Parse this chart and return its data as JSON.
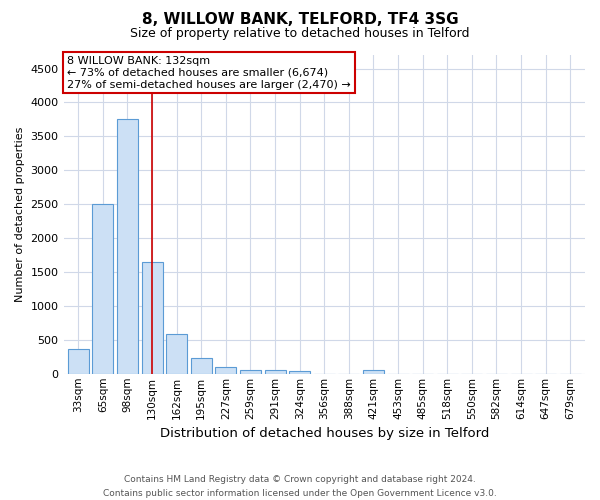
{
  "title_line1": "8, WILLOW BANK, TELFORD, TF4 3SG",
  "title_line2": "Size of property relative to detached houses in Telford",
  "xlabel": "Distribution of detached houses by size in Telford",
  "ylabel": "Number of detached properties",
  "categories": [
    "33sqm",
    "65sqm",
    "98sqm",
    "130sqm",
    "162sqm",
    "195sqm",
    "227sqm",
    "259sqm",
    "291sqm",
    "324sqm",
    "356sqm",
    "388sqm",
    "421sqm",
    "453sqm",
    "485sqm",
    "518sqm",
    "550sqm",
    "582sqm",
    "614sqm",
    "647sqm",
    "679sqm"
  ],
  "values": [
    370,
    2500,
    3750,
    1650,
    590,
    230,
    105,
    60,
    50,
    35,
    0,
    0,
    55,
    0,
    0,
    0,
    0,
    0,
    0,
    0,
    0
  ],
  "bar_color": "#cce0f5",
  "bar_edge_color": "#5b9bd5",
  "vline_x": 3,
  "vline_color": "#cc0000",
  "annotation_line1": "8 WILLOW BANK: 132sqm",
  "annotation_line2": "← 73% of detached houses are smaller (6,674)",
  "annotation_line3": "27% of semi-detached houses are larger (2,470) →",
  "annotation_box_color": "#ffffff",
  "annotation_box_edge_color": "#cc0000",
  "ylim": [
    0,
    4700
  ],
  "yticks": [
    0,
    500,
    1000,
    1500,
    2000,
    2500,
    3000,
    3500,
    4000,
    4500
  ],
  "footer_line1": "Contains HM Land Registry data © Crown copyright and database right 2024.",
  "footer_line2": "Contains public sector information licensed under the Open Government Licence v3.0.",
  "background_color": "#ffffff",
  "grid_color": "#d0d8e8"
}
